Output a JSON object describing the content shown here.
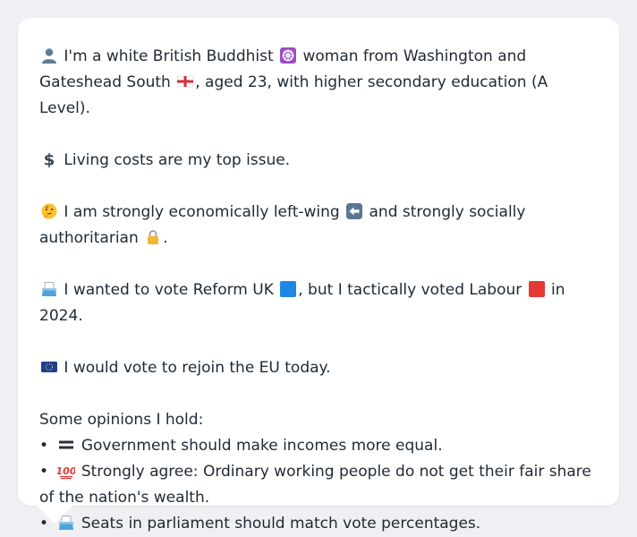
{
  "profile": {
    "intro_pre": "I'm a white British Buddhist",
    "intro_mid": "woman from Washington and Gateshead South",
    "intro_post": ", aged 23, with higher secondary education (A Level).",
    "top_issue": "Living costs are my top issue.",
    "leaning_pre": "I am strongly economically left-wing",
    "leaning_post": "and strongly socially authoritarian",
    "leaning_end": ".",
    "vote_pre": "I wanted to vote Reform UK",
    "vote_mid": ", but I tactically voted Labour",
    "vote_post": "in 2024.",
    "eu": "I would vote to rejoin the EU today."
  },
  "opinions": {
    "heading": "Some opinions I hold:",
    "items": [
      "Government should make incomes more equal.",
      "Strongly agree: Ordinary working people do not get their fair share of the nation's wealth.",
      "Seats in parliament should match vote percentages."
    ],
    "bullet": "•"
  },
  "icons": {
    "person": "person-silhouette-icon",
    "dharma_wheel": "dharma-wheel-icon",
    "england_flag": "england-flag-icon",
    "dollar": "dollar-sign-icon",
    "thinking": "thinking-face-icon",
    "left_arrow": "left-arrow-icon",
    "lock": "lock-icon",
    "ballot": "ballot-box-icon",
    "blue_square": "blue-square-icon",
    "red_square": "red-square-icon",
    "eu_flag": "eu-flag-icon",
    "equals": "heavy-equals-icon",
    "hundred": "hundred-points-icon"
  },
  "colors": {
    "reform_blue": "#1e88e5",
    "labour_red": "#e53935",
    "text": "#1f2933"
  }
}
